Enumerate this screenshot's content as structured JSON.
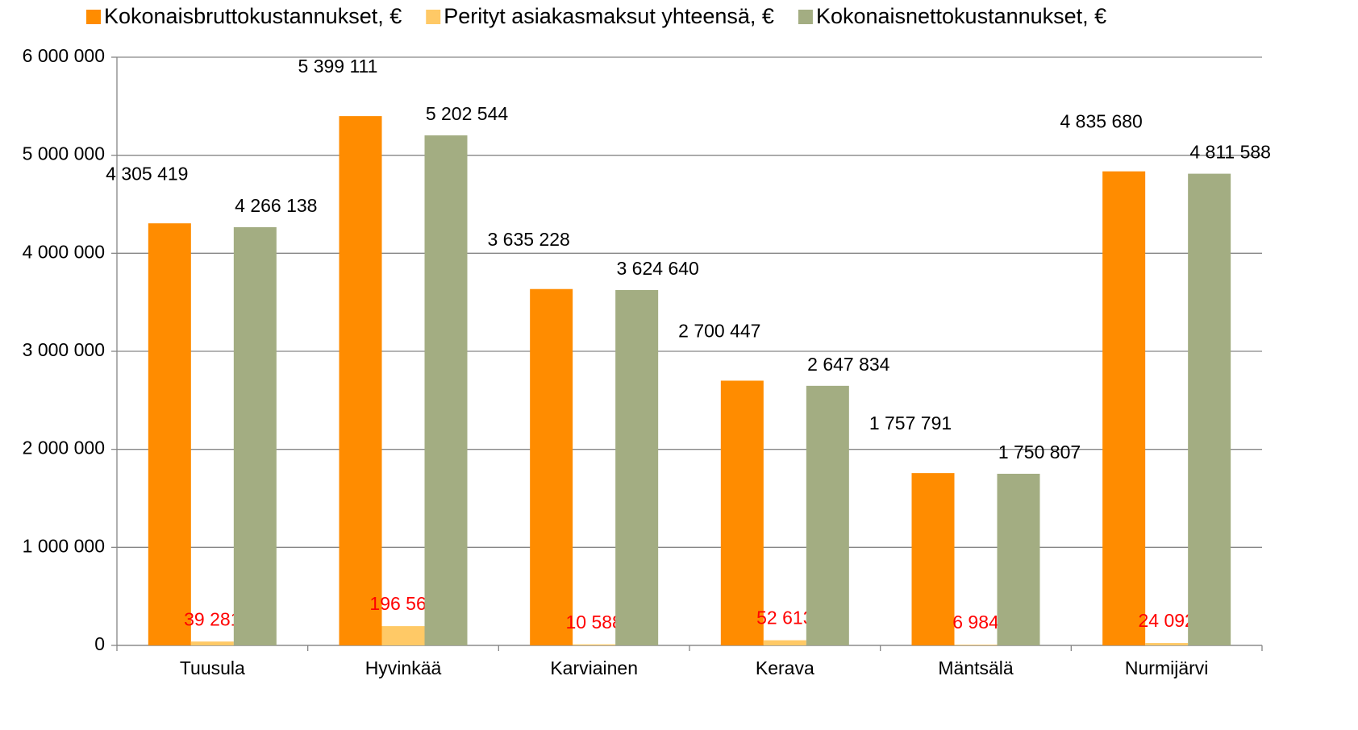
{
  "chart_data": {
    "type": "bar",
    "categories": [
      "Tuusula",
      "Hyvinkää",
      "Karviainen",
      "Kerava",
      "Mäntsälä",
      "Nurmijärvi"
    ],
    "series": [
      {
        "name": "Kokonaisbruttokustannukset, €",
        "color": "#ff8c00",
        "value_label_color": "#000000",
        "values": [
          4305419,
          5399111,
          3635228,
          2700447,
          1757791,
          4835680
        ],
        "value_labels": [
          "4 305 419",
          "5 399 111",
          "3 635 228",
          "2 700 447",
          "1 757 791",
          "4 835 680"
        ]
      },
      {
        "name": "Perityt asiakasmaksut yhteensä, €",
        "color": "#ffc966",
        "value_label_color": "#ff0000",
        "values": [
          39281,
          196567,
          10588,
          52613,
          6984,
          24092
        ],
        "value_labels": [
          "39 281",
          "196 567",
          "10 588",
          "52 613",
          "6 984",
          "24 092"
        ]
      },
      {
        "name": "Kokonaisnettokustannukset, €",
        "color": "#a3ad82",
        "value_label_color": "#000000",
        "values": [
          4266138,
          5202544,
          3624640,
          2647834,
          1750807,
          4811588
        ],
        "value_labels": [
          "4 266 138",
          "5 202 544",
          "3 624 640",
          "2 647 834",
          "1 750 807",
          "4 811 588"
        ]
      }
    ],
    "ylim": [
      0,
      6000000
    ],
    "yticks": [
      0,
      {
        "value": 1000000,
        "label": "1 000 000"
      },
      {
        "value": 2000000,
        "label": "2 000 000"
      },
      {
        "value": 3000000,
        "label": "3 000 000"
      },
      {
        "value": 4000000,
        "label": "4 000 000"
      },
      {
        "value": 5000000,
        "label": "5 000 000"
      },
      {
        "value": 6000000,
        "label": "6 000 000"
      }
    ],
    "grid": true,
    "legend": "top"
  }
}
